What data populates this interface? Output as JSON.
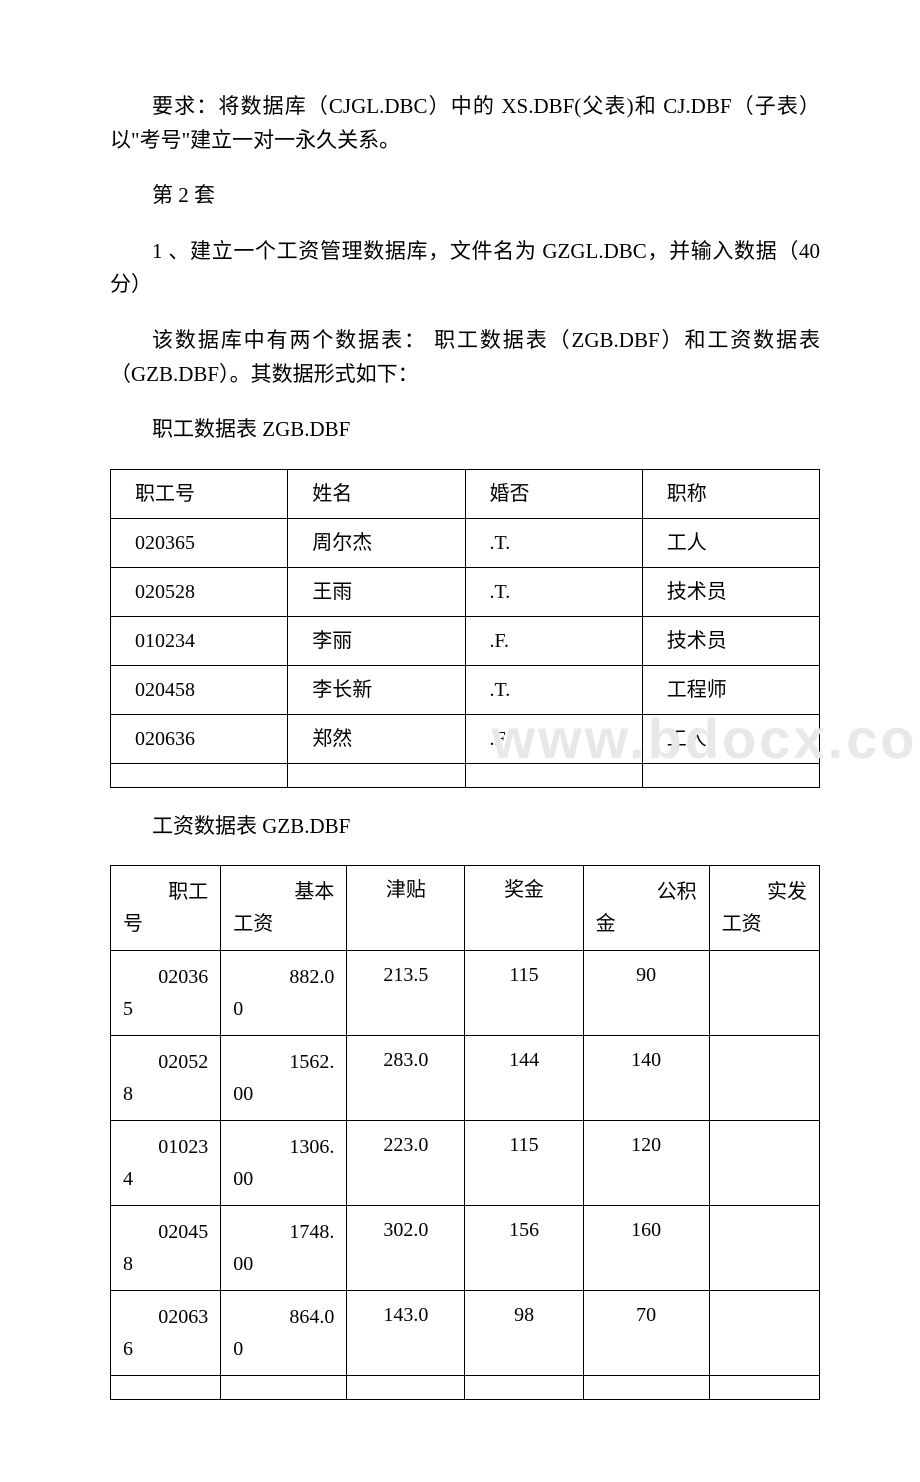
{
  "paragraphs": {
    "p1": "要求：将数据库（CJGL.DBC）中的 XS.DBF(父表)和 CJ.DBF（子表）以\"考号\"建立一对一永久关系。",
    "p2": "第 2 套",
    "p3": "1 、建立一个工资管理数据库，文件名为 GZGL.DBC，并输入数据（40 分）",
    "p4": "该数据库中有两个数据表： 职工数据表（ZGB.DBF）和工资数据表（GZB.DBF）。其数据形式如下：",
    "p5": "职工数据表 ZGB.DBF",
    "p6": "工资数据表 GZB.DBF"
  },
  "watermark": "www.bdocx.com",
  "table1": {
    "headers": [
      "职工号",
      "姓名",
      "婚否",
      "职称"
    ],
    "rows": [
      [
        "020365",
        "周尔杰",
        ".T.",
        "工人"
      ],
      [
        "020528",
        "王雨",
        ".T.",
        "技术员"
      ],
      [
        "010234",
        "李丽",
        ".F.",
        "技术员"
      ],
      [
        "020458",
        "李长新",
        ".T.",
        "工程师"
      ],
      [
        "020636",
        "郑然",
        ".F.",
        "工人"
      ]
    ]
  },
  "table2": {
    "headers": [
      {
        "top": "职工",
        "bot": "号"
      },
      {
        "top": "基本",
        "bot": "工资"
      },
      {
        "top": "津贴",
        "bot": ""
      },
      {
        "top": "奖金",
        "bot": ""
      },
      {
        "top": "公积",
        "bot": "金"
      },
      {
        "top": "实发",
        "bot": "工资"
      }
    ],
    "rows": [
      [
        {
          "top": "02036",
          "bot": "5"
        },
        {
          "top": "882.0",
          "bot": "0"
        },
        "213.5",
        "115",
        "90",
        ""
      ],
      [
        {
          "top": "02052",
          "bot": "8"
        },
        {
          "top": "1562.",
          "bot": "00"
        },
        "283.0",
        "144",
        "140",
        ""
      ],
      [
        {
          "top": "01023",
          "bot": "4"
        },
        {
          "top": "1306.",
          "bot": "00"
        },
        "223.0",
        "115",
        "120",
        ""
      ],
      [
        {
          "top": "02045",
          "bot": "8"
        },
        {
          "top": "1748.",
          "bot": "00"
        },
        "302.0",
        "156",
        "160",
        ""
      ],
      [
        {
          "top": "02063",
          "bot": "6"
        },
        {
          "top": "864.0",
          "bot": "0"
        },
        "143.0",
        "98",
        "70",
        ""
      ]
    ]
  }
}
